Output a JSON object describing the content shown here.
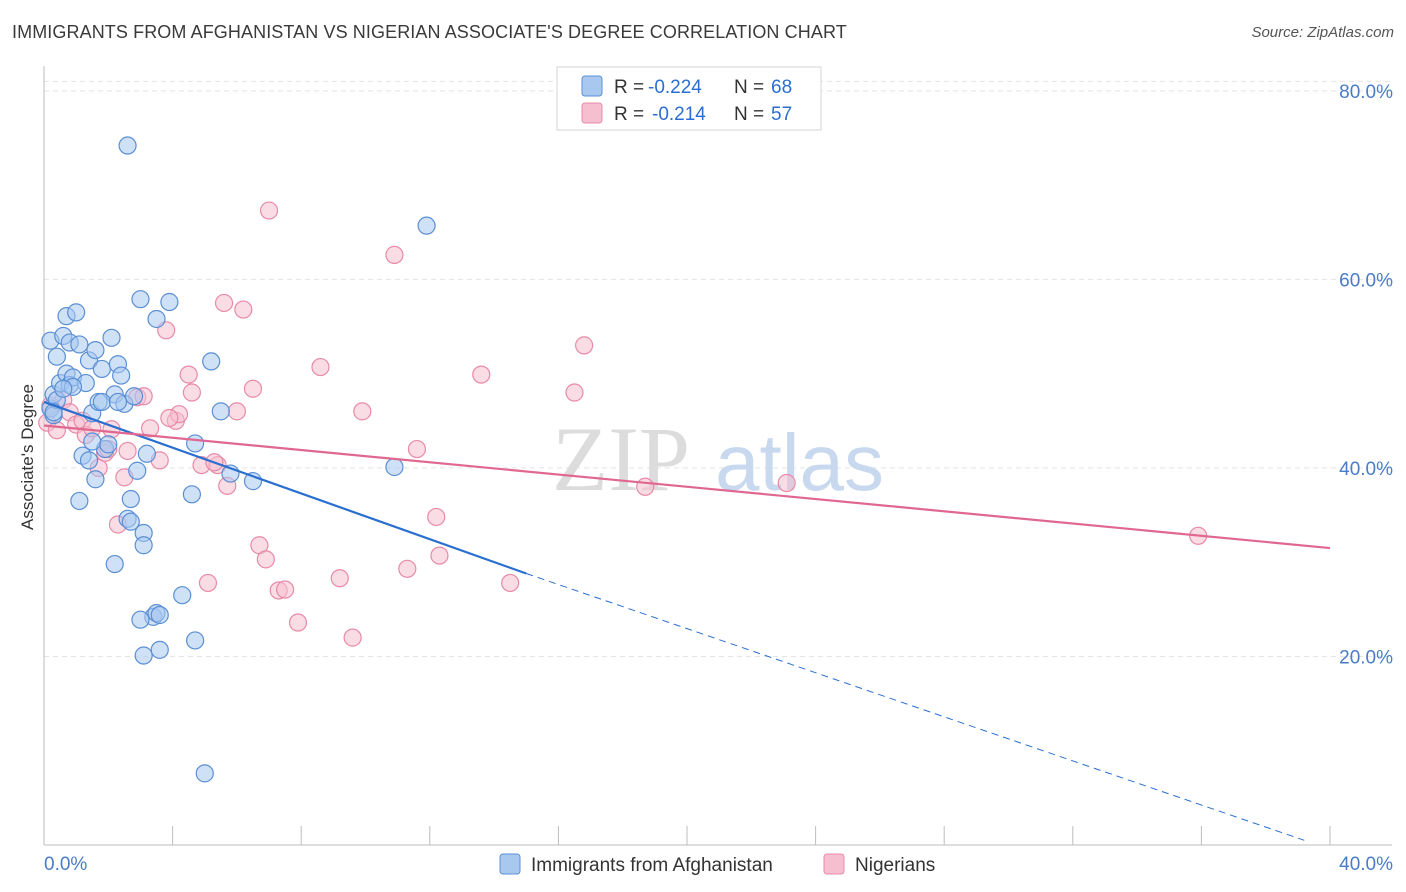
{
  "title": "IMMIGRANTS FROM AFGHANISTAN VS NIGERIAN ASSOCIATE'S DEGREE CORRELATION CHART",
  "source": "Source: ZipAtlas.com",
  "watermark": {
    "zip": "ZIP",
    "atlas": "atlas"
  },
  "colors": {
    "blue_fill": "#a8c8f0",
    "blue_stroke": "#5b8fd4",
    "blue_line": "#2a6fd0",
    "pink_fill": "#f5bfd0",
    "pink_stroke": "#e88aa8",
    "pink_line": "#e06890",
    "axis_text": "#4a7cc7",
    "grid": "#e4e4e4"
  },
  "legend": {
    "rows": [
      {
        "r_label": "R =",
        "r_value": "-0.224",
        "n_label": "N =",
        "n_value": "68"
      },
      {
        "r_label": "R =",
        "r_value": "-0.214",
        "n_label": "N =",
        "n_value": "57"
      }
    ]
  },
  "chart_data": {
    "type": "scatter",
    "title": "IMMIGRANTS FROM AFGHANISTAN VS NIGERIAN ASSOCIATE'S DEGREE CORRELATION CHART",
    "xlabel": "",
    "ylabel": "Associate's Degree",
    "xlim": [
      0,
      40
    ],
    "ylim": [
      0,
      82
    ],
    "x_tick_labels": [
      "0.0%",
      "40.0%"
    ],
    "y_ticks": [
      20,
      40,
      60,
      80
    ],
    "y_tick_labels": [
      "20.0%",
      "40.0%",
      "60.0%",
      "80.0%"
    ],
    "series": [
      {
        "name": "Immigrants from Afghanistan",
        "color": "blue",
        "trend": {
          "x": [
            0.0,
            15.0
          ],
          "y": [
            47.0,
            28.8
          ],
          "dashed_to": {
            "x": 39.2,
            "y": 0.5
          }
        },
        "points": [
          [
            0.2,
            46.3
          ],
          [
            0.3,
            47.8
          ],
          [
            0.3,
            45.6
          ],
          [
            0.2,
            53.5
          ],
          [
            0.4,
            51.8
          ],
          [
            0.5,
            49.0
          ],
          [
            0.6,
            54.0
          ],
          [
            0.7,
            56.1
          ],
          [
            0.7,
            50.0
          ],
          [
            0.8,
            48.8
          ],
          [
            0.8,
            53.3
          ],
          [
            0.9,
            49.6
          ],
          [
            1.0,
            56.5
          ],
          [
            1.1,
            53.1
          ],
          [
            1.2,
            41.3
          ],
          [
            1.3,
            49.0
          ],
          [
            1.4,
            51.4
          ],
          [
            1.5,
            45.8
          ],
          [
            1.6,
            52.5
          ],
          [
            1.7,
            47.0
          ],
          [
            1.8,
            50.5
          ],
          [
            1.9,
            42.0
          ],
          [
            2.1,
            53.8
          ],
          [
            2.2,
            47.8
          ],
          [
            2.3,
            51.0
          ],
          [
            2.4,
            49.8
          ],
          [
            2.5,
            46.8
          ],
          [
            2.7,
            36.7
          ],
          [
            2.8,
            47.6
          ],
          [
            3.0,
            57.9
          ],
          [
            2.6,
            74.2
          ],
          [
            3.5,
            55.8
          ],
          [
            3.9,
            57.6
          ],
          [
            5.2,
            51.3
          ],
          [
            4.7,
            42.6
          ],
          [
            5.5,
            46.0
          ],
          [
            5.8,
            39.4
          ],
          [
            6.5,
            38.6
          ],
          [
            10.9,
            40.1
          ],
          [
            11.9,
            65.7
          ],
          [
            1.5,
            42.8
          ],
          [
            1.6,
            38.8
          ],
          [
            1.8,
            47.0
          ],
          [
            0.4,
            47.2
          ],
          [
            0.9,
            48.6
          ],
          [
            2.2,
            29.8
          ],
          [
            2.6,
            34.6
          ],
          [
            2.7,
            34.3
          ],
          [
            2.9,
            39.7
          ],
          [
            3.1,
            33.1
          ],
          [
            3.1,
            31.8
          ],
          [
            3.2,
            41.5
          ],
          [
            3.4,
            24.2
          ],
          [
            3.5,
            24.6
          ],
          [
            3.0,
            23.9
          ],
          [
            3.1,
            20.1
          ],
          [
            3.6,
            20.7
          ],
          [
            4.3,
            26.5
          ],
          [
            4.7,
            21.7
          ],
          [
            4.6,
            37.2
          ],
          [
            5.0,
            7.6
          ],
          [
            1.1,
            36.5
          ],
          [
            1.4,
            40.8
          ],
          [
            2.0,
            42.5
          ],
          [
            0.3,
            45.9
          ],
          [
            0.6,
            48.4
          ],
          [
            3.6,
            24.4
          ],
          [
            2.3,
            47.0
          ]
        ]
      },
      {
        "name": "Nigerians",
        "color": "pink",
        "trend": {
          "x": [
            0.0,
            40.0
          ],
          "y": [
            44.5,
            31.5
          ]
        },
        "points": [
          [
            0.1,
            44.8
          ],
          [
            0.4,
            44.0
          ],
          [
            0.6,
            47.2
          ],
          [
            0.8,
            45.9
          ],
          [
            1.0,
            44.6
          ],
          [
            1.2,
            45.0
          ],
          [
            1.3,
            43.5
          ],
          [
            1.5,
            44.2
          ],
          [
            1.7,
            40.0
          ],
          [
            1.9,
            41.6
          ],
          [
            2.1,
            44.1
          ],
          [
            2.3,
            34.0
          ],
          [
            2.5,
            39.0
          ],
          [
            2.6,
            41.8
          ],
          [
            2.9,
            47.5
          ],
          [
            3.1,
            47.6
          ],
          [
            3.3,
            44.2
          ],
          [
            3.6,
            40.8
          ],
          [
            3.8,
            54.6
          ],
          [
            4.1,
            45.0
          ],
          [
            4.2,
            45.7
          ],
          [
            4.5,
            49.9
          ],
          [
            4.6,
            48.0
          ],
          [
            4.9,
            40.3
          ],
          [
            5.1,
            27.8
          ],
          [
            5.4,
            40.3
          ],
          [
            5.6,
            57.5
          ],
          [
            5.7,
            38.1
          ],
          [
            6.0,
            46.0
          ],
          [
            6.2,
            56.8
          ],
          [
            6.5,
            48.4
          ],
          [
            6.7,
            31.8
          ],
          [
            6.9,
            30.3
          ],
          [
            7.0,
            67.3
          ],
          [
            7.3,
            27.0
          ],
          [
            7.5,
            27.1
          ],
          [
            7.9,
            23.6
          ],
          [
            8.6,
            50.7
          ],
          [
            9.2,
            28.3
          ],
          [
            9.6,
            22.0
          ],
          [
            9.9,
            46.0
          ],
          [
            10.9,
            62.6
          ],
          [
            11.3,
            29.3
          ],
          [
            11.6,
            42.0
          ],
          [
            12.2,
            34.8
          ],
          [
            12.3,
            30.7
          ],
          [
            13.6,
            49.9
          ],
          [
            14.5,
            27.8
          ],
          [
            16.5,
            48.0
          ],
          [
            16.8,
            53.0
          ],
          [
            18.7,
            38.0
          ],
          [
            23.1,
            38.4
          ],
          [
            35.9,
            32.8
          ],
          [
            3.9,
            45.3
          ],
          [
            0.2,
            46.6
          ],
          [
            5.3,
            40.6
          ],
          [
            2.0,
            42.0
          ]
        ]
      }
    ],
    "legend_labels": [
      "Immigrants from Afghanistan",
      "Nigerians"
    ]
  }
}
